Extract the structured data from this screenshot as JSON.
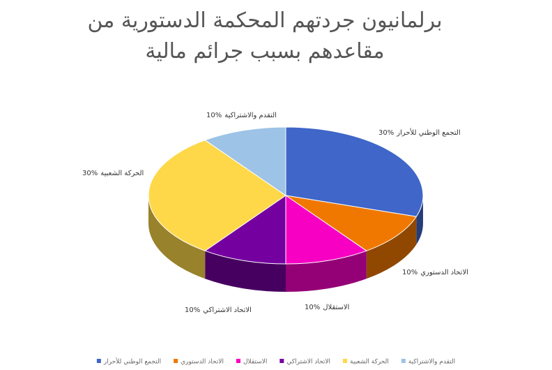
{
  "chart_data": {
    "type": "pie",
    "title": "برلمانيون جردتهم المحكمة الدستورية من مقاعدهم بسبب جرائم مالية",
    "categories": [
      "التجمع الوطني للأحرار",
      "الاتحاد الدستوري",
      "الاستقلال",
      "الاتحاد الاشتراكي",
      "الحركة الشعبية",
      "التقدم والاشتراكية"
    ],
    "values": [
      30,
      10,
      10,
      10,
      30,
      10
    ],
    "value_labels": [
      "30%",
      "10%",
      "10%",
      "10%",
      "30%",
      "10%"
    ],
    "colors": [
      "#3f66c8",
      "#f07800",
      "#f700c4",
      "#7400a0",
      "#ffd84a",
      "#9dc3e6"
    ],
    "legend": "bottom"
  }
}
